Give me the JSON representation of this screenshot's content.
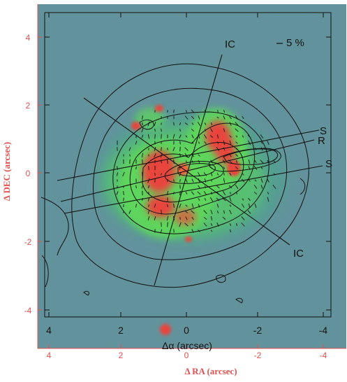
{
  "chart_data": {
    "type": "heatmap",
    "x_inner": {
      "label": "Δα (arcsec)",
      "ticks": [
        "4",
        "2",
        "0",
        "-2",
        "-4"
      ],
      "range": [
        4.4,
        -4.4
      ]
    },
    "x_outer": {
      "label": "Δ RA (arcsec)",
      "ticks": [
        "4",
        "2",
        "0",
        "-2",
        "-4"
      ]
    },
    "y_outer": {
      "label": "Δ DEC (arcsec)",
      "ticks": [
        "4",
        "2",
        "0",
        "-2",
        "-4"
      ],
      "range": [
        -4.4,
        4.4
      ]
    },
    "annotations": {
      "ic_top": "IC",
      "ic_bottom": "IC",
      "s_top": "S",
      "r": "R",
      "s_right": "S",
      "scale": "5 %"
    },
    "colors": {
      "background": "#5e8f98",
      "emission_green": "#5fd85a",
      "emission_red": "#e8443c",
      "contour": "#111111",
      "outer_axis": "#e05050"
    }
  }
}
